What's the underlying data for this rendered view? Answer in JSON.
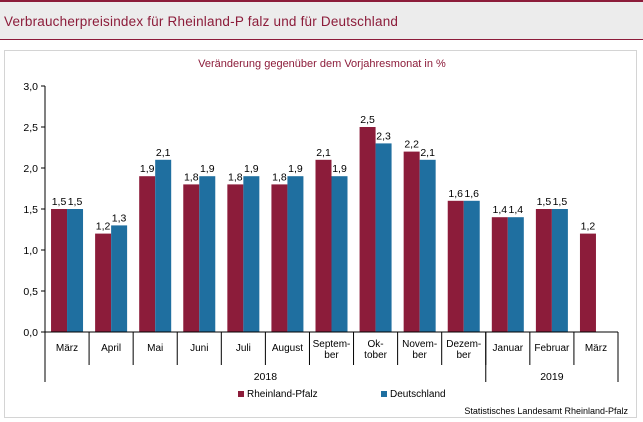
{
  "title": "Verbraucherpreisindex für Rheinland-P falz und für Deutschland",
  "source": "Statistisches Landesamt Rheinland-Pfalz",
  "colors": {
    "rheinland_pfalz": "#8c1c3a",
    "deutschland": "#1f6fa0",
    "title": "#8c1c3a"
  },
  "chart_data": {
    "type": "bar",
    "subtitle": "Veränderung gegenüber dem Vorjahresmonat in %",
    "categories": [
      [
        "März"
      ],
      [
        "April"
      ],
      [
        "Mai"
      ],
      [
        "Juni"
      ],
      [
        "Juli"
      ],
      [
        "August"
      ],
      [
        "Septem-",
        "ber"
      ],
      [
        "Ok-",
        "tober"
      ],
      [
        "Novem-",
        "ber"
      ],
      [
        "Dezem-",
        "ber"
      ],
      [
        "Januar"
      ],
      [
        "Februar"
      ],
      [
        "März"
      ]
    ],
    "year_groups": [
      {
        "label": "2018",
        "start": 0,
        "end": 9
      },
      {
        "label": "2019",
        "start": 10,
        "end": 12
      }
    ],
    "series": [
      {
        "name": "Rheinland-Pfalz",
        "values": [
          1.5,
          1.2,
          1.9,
          1.8,
          1.8,
          1.8,
          2.1,
          2.5,
          2.2,
          1.6,
          1.4,
          1.5,
          1.2
        ]
      },
      {
        "name": "Deutschland",
        "values": [
          1.5,
          1.3,
          2.1,
          1.9,
          1.9,
          1.9,
          1.9,
          2.3,
          2.1,
          1.6,
          1.4,
          1.5,
          null
        ]
      }
    ],
    "ylim": [
      0,
      3.0
    ],
    "yticks": [
      0.0,
      0.5,
      1.0,
      1.5,
      2.0,
      2.5,
      3.0
    ],
    "ytick_labels": [
      "0,0",
      "0,5",
      "1,0",
      "1,5",
      "2,0",
      "2,5",
      "3,0"
    ],
    "grid": false,
    "legend": "bottom-center"
  }
}
